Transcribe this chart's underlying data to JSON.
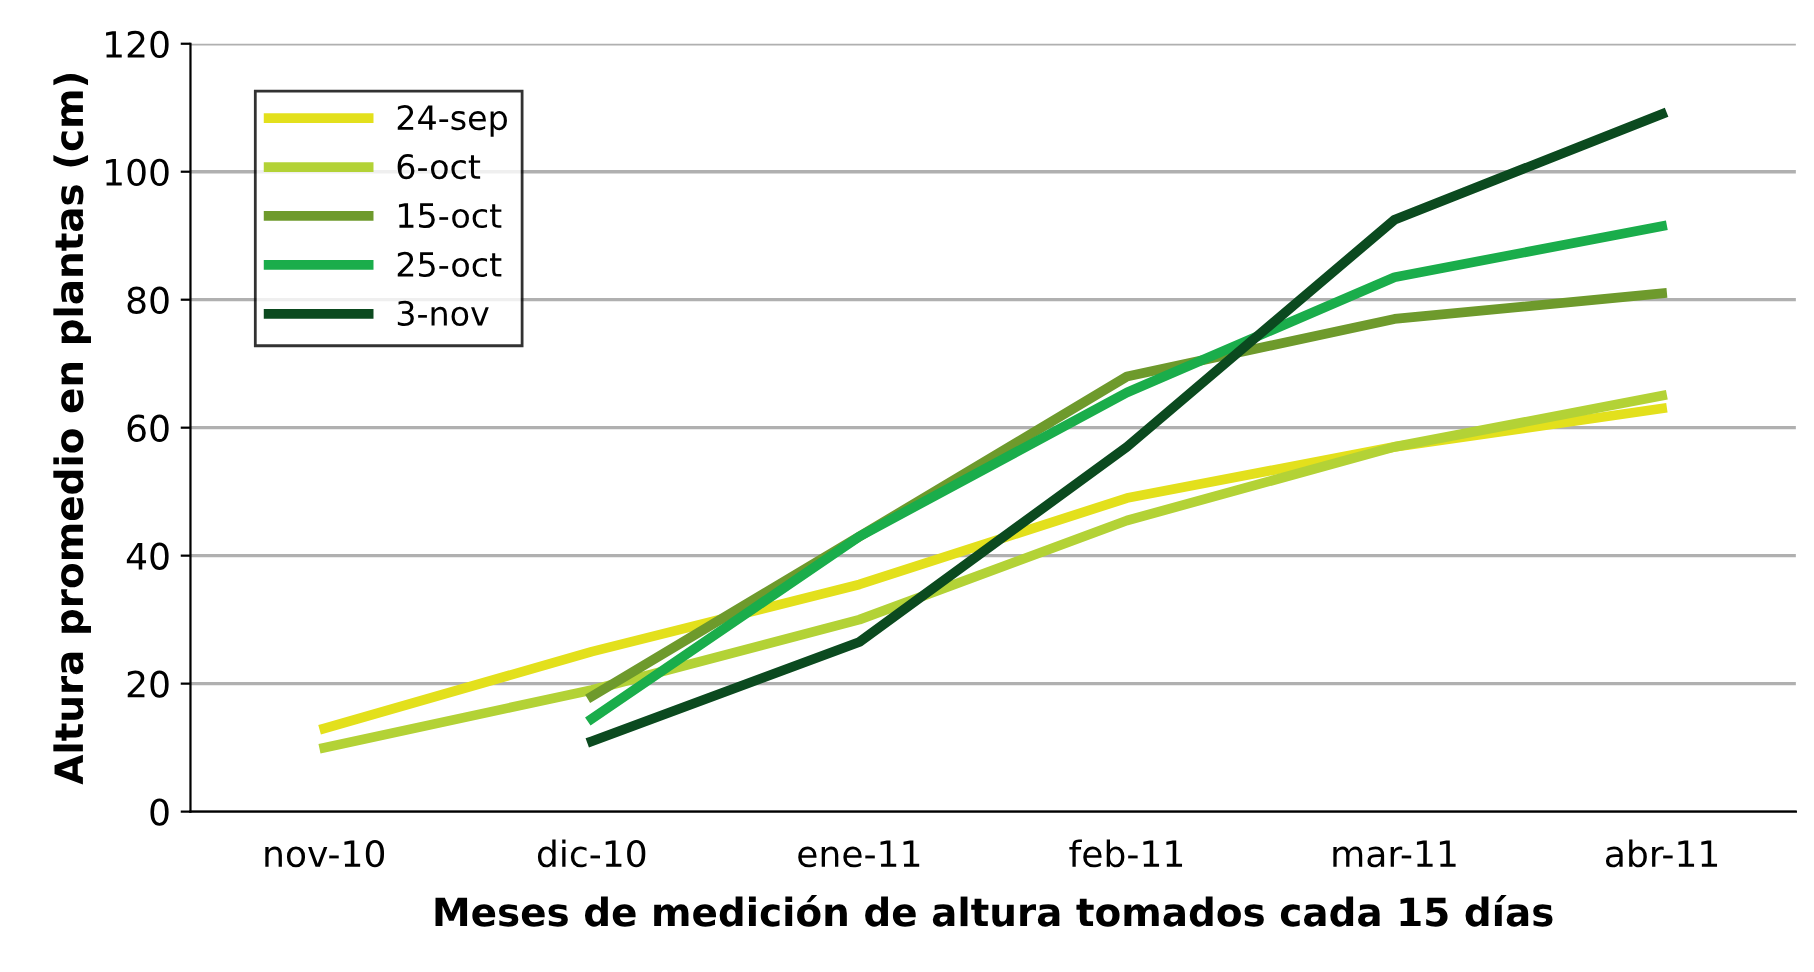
{
  "chart_data": {
    "type": "line",
    "xlabel": "Meses de medición de altura tomados cada 15 días",
    "ylabel": "Altura promedio en plantas (cm)",
    "categories": [
      "nov-10",
      "dic-10",
      "ene-11",
      "feb-11",
      "mar-11",
      "abr-11"
    ],
    "series": [
      {
        "name": "24-sep",
        "color": "#e3e01c",
        "values": [
          13,
          25,
          35.5,
          49,
          57,
          63
        ]
      },
      {
        "name": "6-oct",
        "color": "#b3d236",
        "values": [
          10,
          19,
          30,
          45.5,
          57,
          65
        ]
      },
      {
        "name": "15-oct",
        "color": "#6e9a2c",
        "values": [
          null,
          18,
          43,
          68,
          77,
          81
        ]
      },
      {
        "name": "25-oct",
        "color": "#1aad4b",
        "values": [
          null,
          14.5,
          43,
          65.5,
          83.5,
          91.5
        ]
      },
      {
        "name": "3-nov",
        "color": "#0b4a1f",
        "values": [
          null,
          11,
          26.5,
          57,
          92.5,
          109
        ]
      }
    ],
    "ylim": [
      0,
      120
    ],
    "yticks": [
      0,
      20,
      40,
      60,
      80,
      100,
      120
    ],
    "grid": "y",
    "legend": "top left",
    "marker": "none",
    "line_style": "solid"
  }
}
